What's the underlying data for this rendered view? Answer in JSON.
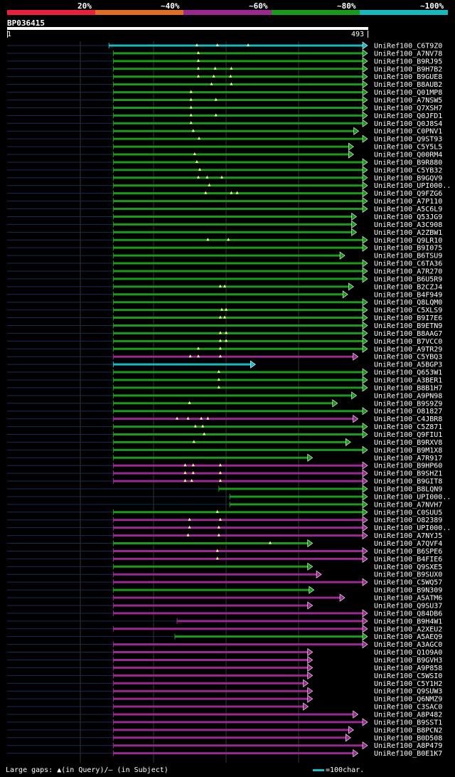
{
  "legend": {
    "labels": [
      "20%",
      "~40%",
      "~60%",
      "~80%",
      "~100%"
    ],
    "colors": [
      "#e8203a",
      "#e07020",
      "#9a2890",
      "#1a9a1a",
      "#18b8c0"
    ]
  },
  "query": {
    "id": "BP036415",
    "start": "1",
    "end": "493",
    "length": 493
  },
  "footer": {
    "gaps_text": "Large gaps: ▲(in Query)/– (in Subject)",
    "scale_text": "=100char."
  },
  "chart_data": {
    "type": "alignment",
    "query_length": 493,
    "hits": [
      {
        "id": "UniRef100_C6T9Z0",
        "start": 140,
        "end": 493,
        "identity": "~100%",
        "gaps": [
          260,
          288,
          330
        ]
      },
      {
        "id": "UniRef100_A7NV78",
        "start": 146,
        "end": 493,
        "identity": "~80%",
        "gaps": [
          262
        ]
      },
      {
        "id": "UniRef100_B9RJ95",
        "start": 146,
        "end": 493,
        "identity": "~80%",
        "gaps": [
          262
        ]
      },
      {
        "id": "UniRef100_B9H7B2",
        "start": 146,
        "end": 493,
        "identity": "~80%",
        "gaps": [
          262,
          285,
          307
        ]
      },
      {
        "id": "UniRef100_B9GUE8",
        "start": 146,
        "end": 493,
        "identity": "~80%",
        "gaps": [
          262,
          283,
          306
        ]
      },
      {
        "id": "UniRef100_B8AUB2",
        "start": 146,
        "end": 493,
        "identity": "~80%",
        "gaps": [
          280,
          307
        ]
      },
      {
        "id": "UniRef100_Q01MP8",
        "start": 146,
        "end": 493,
        "identity": "~80%",
        "gaps": [
          252
        ]
      },
      {
        "id": "UniRef100_A7NSW5",
        "start": 146,
        "end": 493,
        "identity": "~80%",
        "gaps": [
          252,
          286
        ]
      },
      {
        "id": "UniRef100_Q7XSH7",
        "start": 146,
        "end": 493,
        "identity": "~80%",
        "gaps": [
          252
        ]
      },
      {
        "id": "UniRef100_Q0JFD1",
        "start": 146,
        "end": 493,
        "identity": "~80%",
        "gaps": [
          252,
          286
        ]
      },
      {
        "id": "UniRef100_Q0J8S4",
        "start": 146,
        "end": 493,
        "identity": "~80%",
        "gaps": [
          252
        ]
      },
      {
        "id": "UniRef100_C0PNV1",
        "start": 146,
        "end": 481,
        "identity": "~80%",
        "gaps": [
          255
        ]
      },
      {
        "id": "UniRef100_Q9ST93",
        "start": 146,
        "end": 493,
        "identity": "~80%",
        "gaps": [
          263
        ]
      },
      {
        "id": "UniRef100_C5Y5L5",
        "start": 146,
        "end": 474,
        "identity": "~80%",
        "gaps": []
      },
      {
        "id": "UniRef100_Q00RM4",
        "start": 146,
        "end": 474,
        "identity": "~80%",
        "gaps": [
          257
        ]
      },
      {
        "id": "UniRef100_B9R880",
        "start": 146,
        "end": 493,
        "identity": "~80%",
        "gaps": [
          260
        ]
      },
      {
        "id": "UniRef100_C5YB32",
        "start": 146,
        "end": 493,
        "identity": "~80%",
        "gaps": [
          264
        ]
      },
      {
        "id": "UniRef100_B9GQV9",
        "start": 146,
        "end": 493,
        "identity": "~80%",
        "gaps": [
          262,
          274,
          294
        ]
      },
      {
        "id": "UniRef100_UPI000..",
        "start": 146,
        "end": 493,
        "identity": "~80%",
        "gaps": [
          277
        ]
      },
      {
        "id": "UniRef100_Q9FZG6",
        "start": 146,
        "end": 493,
        "identity": "~80%",
        "gaps": [
          272,
          307,
          315
        ]
      },
      {
        "id": "UniRef100_A7P110",
        "start": 146,
        "end": 493,
        "identity": "~80%",
        "gaps": []
      },
      {
        "id": "UniRef100_A5C6L9",
        "start": 146,
        "end": 493,
        "identity": "~80%",
        "gaps": []
      },
      {
        "id": "UniRef100_Q53JG9",
        "start": 146,
        "end": 478,
        "identity": "~80%",
        "gaps": []
      },
      {
        "id": "UniRef100_A3C908",
        "start": 146,
        "end": 478,
        "identity": "~80%",
        "gaps": []
      },
      {
        "id": "UniRef100_A2ZBW1",
        "start": 146,
        "end": 478,
        "identity": "~80%",
        "gaps": []
      },
      {
        "id": "UniRef100_Q9LR10",
        "start": 146,
        "end": 493,
        "identity": "~80%",
        "gaps": [
          275,
          303
        ]
      },
      {
        "id": "UniRef100_B9I075",
        "start": 146,
        "end": 493,
        "identity": "~80%",
        "gaps": []
      },
      {
        "id": "UniRef100_B6TSU9",
        "start": 146,
        "end": 462,
        "identity": "~80%",
        "gaps": []
      },
      {
        "id": "UniRef100_C6TA36",
        "start": 146,
        "end": 493,
        "identity": "~80%",
        "gaps": []
      },
      {
        "id": "UniRef100_A7R270",
        "start": 146,
        "end": 493,
        "identity": "~80%",
        "gaps": []
      },
      {
        "id": "UniRef100_B6U5R9",
        "start": 146,
        "end": 493,
        "identity": "~80%",
        "gaps": []
      },
      {
        "id": "UniRef100_B2CZJ4",
        "start": 146,
        "end": 474,
        "identity": "~80%",
        "gaps": [
          292,
          298
        ]
      },
      {
        "id": "UniRef100_B4F949",
        "start": 146,
        "end": 466,
        "identity": "~80%",
        "gaps": []
      },
      {
        "id": "UniRef100_Q8LQM0",
        "start": 146,
        "end": 493,
        "identity": "~80%",
        "gaps": []
      },
      {
        "id": "UniRef100_C5XLS9",
        "start": 146,
        "end": 493,
        "identity": "~80%",
        "gaps": [
          294,
          300
        ]
      },
      {
        "id": "UniRef100_B9I7E6",
        "start": 146,
        "end": 493,
        "identity": "~80%",
        "gaps": [
          292,
          298
        ]
      },
      {
        "id": "UniRef100_B9ETN9",
        "start": 146,
        "end": 493,
        "identity": "~80%",
        "gaps": []
      },
      {
        "id": "UniRef100_B8AAG7",
        "start": 146,
        "end": 493,
        "identity": "~80%",
        "gaps": [
          292,
          300
        ]
      },
      {
        "id": "UniRef100_B7VCC0",
        "start": 146,
        "end": 493,
        "identity": "~80%",
        "gaps": [
          292,
          300
        ]
      },
      {
        "id": "UniRef100_A9TR29",
        "start": 146,
        "end": 493,
        "identity": "~80%",
        "gaps": [
          262,
          292
        ]
      },
      {
        "id": "UniRef100_C5YBQ3",
        "start": 146,
        "end": 480,
        "identity": "~60%",
        "gaps": [
          251,
          262,
          292
        ]
      },
      {
        "id": "UniRef100_A5BGP3",
        "start": 146,
        "end": 340,
        "identity": "~100%",
        "gaps": []
      },
      {
        "id": "UniRef100_Q653W1",
        "start": 146,
        "end": 493,
        "identity": "~80%",
        "gaps": [
          290
        ]
      },
      {
        "id": "UniRef100_A3BER1",
        "start": 146,
        "end": 493,
        "identity": "~80%",
        "gaps": [
          290
        ]
      },
      {
        "id": "UniRef100_B8B1H7",
        "start": 146,
        "end": 493,
        "identity": "~80%",
        "gaps": [
          290
        ]
      },
      {
        "id": "UniRef100_A9PN98",
        "start": 146,
        "end": 478,
        "identity": "~80%",
        "gaps": []
      },
      {
        "id": "UniRef100_B9S9Z9",
        "start": 146,
        "end": 452,
        "identity": "~80%",
        "gaps": [
          250
        ]
      },
      {
        "id": "UniRef100_O81827",
        "start": 146,
        "end": 493,
        "identity": "~80%",
        "gaps": []
      },
      {
        "id": "UniRef100_C4JBR8",
        "start": 146,
        "end": 480,
        "identity": "~60%",
        "gaps": [
          233,
          248,
          266,
          275
        ]
      },
      {
        "id": "UniRef100_C5Z871",
        "start": 146,
        "end": 493,
        "identity": "~80%",
        "gaps": [
          258,
          268
        ]
      },
      {
        "id": "UniRef100_Q9FIU1",
        "start": 146,
        "end": 493,
        "identity": "~80%",
        "gaps": [
          270
        ]
      },
      {
        "id": "UniRef100_B9RXV8",
        "start": 146,
        "end": 470,
        "identity": "~80%",
        "gaps": [
          256
        ]
      },
      {
        "id": "UniRef100_B9M1X8",
        "start": 146,
        "end": 493,
        "identity": "~80%",
        "gaps": []
      },
      {
        "id": "UniRef100_A7R917",
        "start": 146,
        "end": 418,
        "identity": "~80%",
        "gaps": []
      },
      {
        "id": "UniRef100_B9HP60",
        "start": 146,
        "end": 493,
        "identity": "~60%",
        "gaps": [
          244,
          255,
          292
        ]
      },
      {
        "id": "UniRef100_B9SHZ1",
        "start": 146,
        "end": 493,
        "identity": "~60%",
        "gaps": [
          244,
          255,
          292
        ]
      },
      {
        "id": "UniRef100_B9GIT8",
        "start": 146,
        "end": 493,
        "identity": "~60%",
        "gaps": [
          244,
          253,
          292
        ]
      },
      {
        "id": "UniRef100_B8LQN9",
        "start": 290,
        "end": 493,
        "identity": "~80%",
        "gaps": []
      },
      {
        "id": "UniRef100_UPI000..",
        "start": 305,
        "end": 493,
        "identity": "~80%",
        "gaps": []
      },
      {
        "id": "UniRef100_A7NVH7",
        "start": 305,
        "end": 493,
        "identity": "~80%",
        "gaps": []
      },
      {
        "id": "UniRef100_C0SUU5",
        "start": 146,
        "end": 493,
        "identity": "~80%",
        "gaps": [
          288
        ]
      },
      {
        "id": "UniRef100_O82389",
        "start": 146,
        "end": 493,
        "identity": "~60%",
        "gaps": [
          250,
          292
        ]
      },
      {
        "id": "UniRef100_UPI000..",
        "start": 146,
        "end": 493,
        "identity": "~60%",
        "gaps": [
          250,
          290
        ]
      },
      {
        "id": "UniRef100_A7NYJ5",
        "start": 146,
        "end": 493,
        "identity": "~60%",
        "gaps": [
          248,
          290
        ]
      },
      {
        "id": "UniRef100_A7QVF4",
        "start": 146,
        "end": 418,
        "identity": "~80%",
        "gaps": [
          360
        ]
      },
      {
        "id": "UniRef100_B6SPE6",
        "start": 146,
        "end": 493,
        "identity": "~60%",
        "gaps": [
          288
        ]
      },
      {
        "id": "UniRef100_B4FIE6",
        "start": 146,
        "end": 493,
        "identity": "~60%",
        "gaps": [
          288
        ]
      },
      {
        "id": "UniRef100_Q9SXE5",
        "start": 146,
        "end": 418,
        "identity": "~80%",
        "gaps": []
      },
      {
        "id": "UniRef100_B9SUX0",
        "start": 146,
        "end": 430,
        "identity": "~60%",
        "gaps": []
      },
      {
        "id": "UniRef100_C5WQ57",
        "start": 146,
        "end": 493,
        "identity": "~60%",
        "gaps": []
      },
      {
        "id": "UniRef100_B9N309",
        "start": 146,
        "end": 420,
        "identity": "~80%",
        "gaps": []
      },
      {
        "id": "UniRef100_A5ATM6",
        "start": 146,
        "end": 462,
        "identity": "~60%",
        "gaps": []
      },
      {
        "id": "UniRef100_Q9SU37",
        "start": 146,
        "end": 418,
        "identity": "~60%",
        "gaps": []
      },
      {
        "id": "UniRef100_Q84DB6",
        "start": 146,
        "end": 493,
        "identity": "~60%",
        "gaps": []
      },
      {
        "id": "UniRef100_B9H4W1",
        "start": 233,
        "end": 493,
        "identity": "~60%",
        "gaps": []
      },
      {
        "id": "UniRef100_A2XEU2",
        "start": 146,
        "end": 493,
        "identity": "~60%",
        "gaps": []
      },
      {
        "id": "UniRef100_A5AEQ9",
        "start": 230,
        "end": 493,
        "identity": "~80%",
        "gaps": []
      },
      {
        "id": "UniRef100_A3AGC0",
        "start": 146,
        "end": 493,
        "identity": "~60%",
        "gaps": []
      },
      {
        "id": "UniRef100_Q1O9A0",
        "start": 146,
        "end": 418,
        "identity": "~60%",
        "gaps": []
      },
      {
        "id": "UniRef100_B9GVH3",
        "start": 146,
        "end": 418,
        "identity": "~60%",
        "gaps": []
      },
      {
        "id": "UniRef100_A9P858",
        "start": 146,
        "end": 418,
        "identity": "~60%",
        "gaps": []
      },
      {
        "id": "UniRef100_C5WSI0",
        "start": 146,
        "end": 418,
        "identity": "~60%",
        "gaps": []
      },
      {
        "id": "UniRef100_C5Y1H2",
        "start": 146,
        "end": 412,
        "identity": "~60%",
        "gaps": []
      },
      {
        "id": "UniRef100_Q9SUW3",
        "start": 146,
        "end": 418,
        "identity": "~60%",
        "gaps": []
      },
      {
        "id": "UniRef100_Q6NMZ9",
        "start": 146,
        "end": 418,
        "identity": "~60%",
        "gaps": []
      },
      {
        "id": "UniRef100_C3SAC0",
        "start": 146,
        "end": 412,
        "identity": "~60%",
        "gaps": []
      },
      {
        "id": "UniRef100_A8P482",
        "start": 146,
        "end": 480,
        "identity": "~60%",
        "gaps": []
      },
      {
        "id": "UniRef100_B9SST1",
        "start": 146,
        "end": 493,
        "identity": "~60%",
        "gaps": []
      },
      {
        "id": "UniRef100_B8PCN2",
        "start": 146,
        "end": 474,
        "identity": "~60%",
        "gaps": []
      },
      {
        "id": "UniRef100_B0D508",
        "start": 146,
        "end": 470,
        "identity": "~60%",
        "gaps": []
      },
      {
        "id": "UniRef100_A8P479",
        "start": 146,
        "end": 493,
        "identity": "~60%",
        "gaps": []
      },
      {
        "id": "UniRef100_B0E1K7",
        "start": 146,
        "end": 480,
        "identity": "~60%",
        "gaps": []
      }
    ]
  }
}
